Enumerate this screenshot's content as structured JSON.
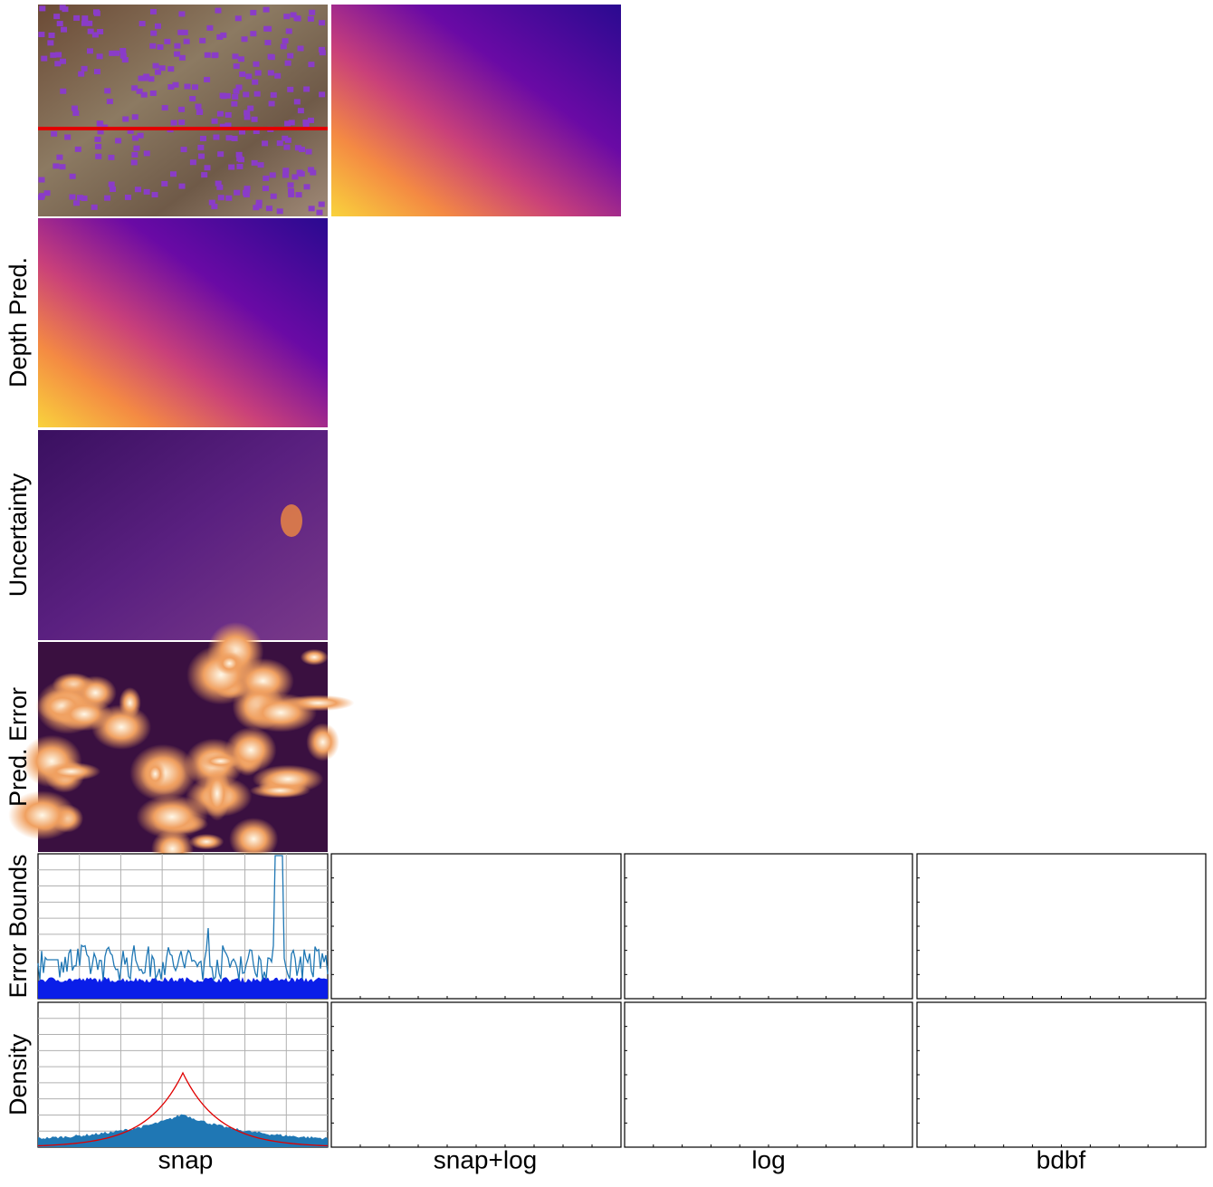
{
  "row_labels": [
    "Depth Pred.",
    "Uncertainty",
    "Pred. Error",
    "Error Bounds",
    "Density"
  ],
  "column_labels": [
    "snap",
    "snap+log",
    "log",
    "bdbf"
  ]
}
